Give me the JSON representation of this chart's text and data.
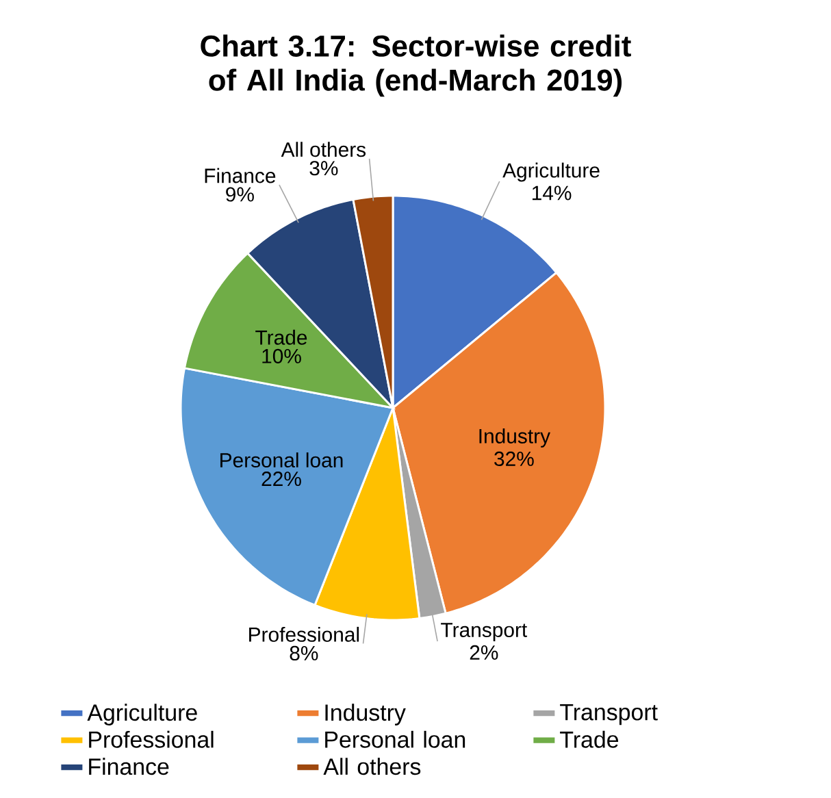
{
  "chart_data": {
    "type": "pie",
    "title": "Chart 3.17: Sector-wise credit of All India (end-March 2019)",
    "categories": [
      "Agriculture",
      "Industry",
      "Transport",
      "Professional",
      "Personal loan",
      "Trade",
      "Finance",
      "All others"
    ],
    "values": [
      14,
      32,
      2,
      8,
      22,
      10,
      9,
      3
    ],
    "value_labels": [
      "14%",
      "32%",
      "2%",
      "8%",
      "22%",
      "10%",
      "9%",
      "3%"
    ],
    "colors": [
      "#4472c4",
      "#ed7d31",
      "#a5a5a5",
      "#ffc000",
      "#5b9bd5",
      "#70ad47",
      "#264478",
      "#9e480e"
    ],
    "legend": "bottom"
  }
}
